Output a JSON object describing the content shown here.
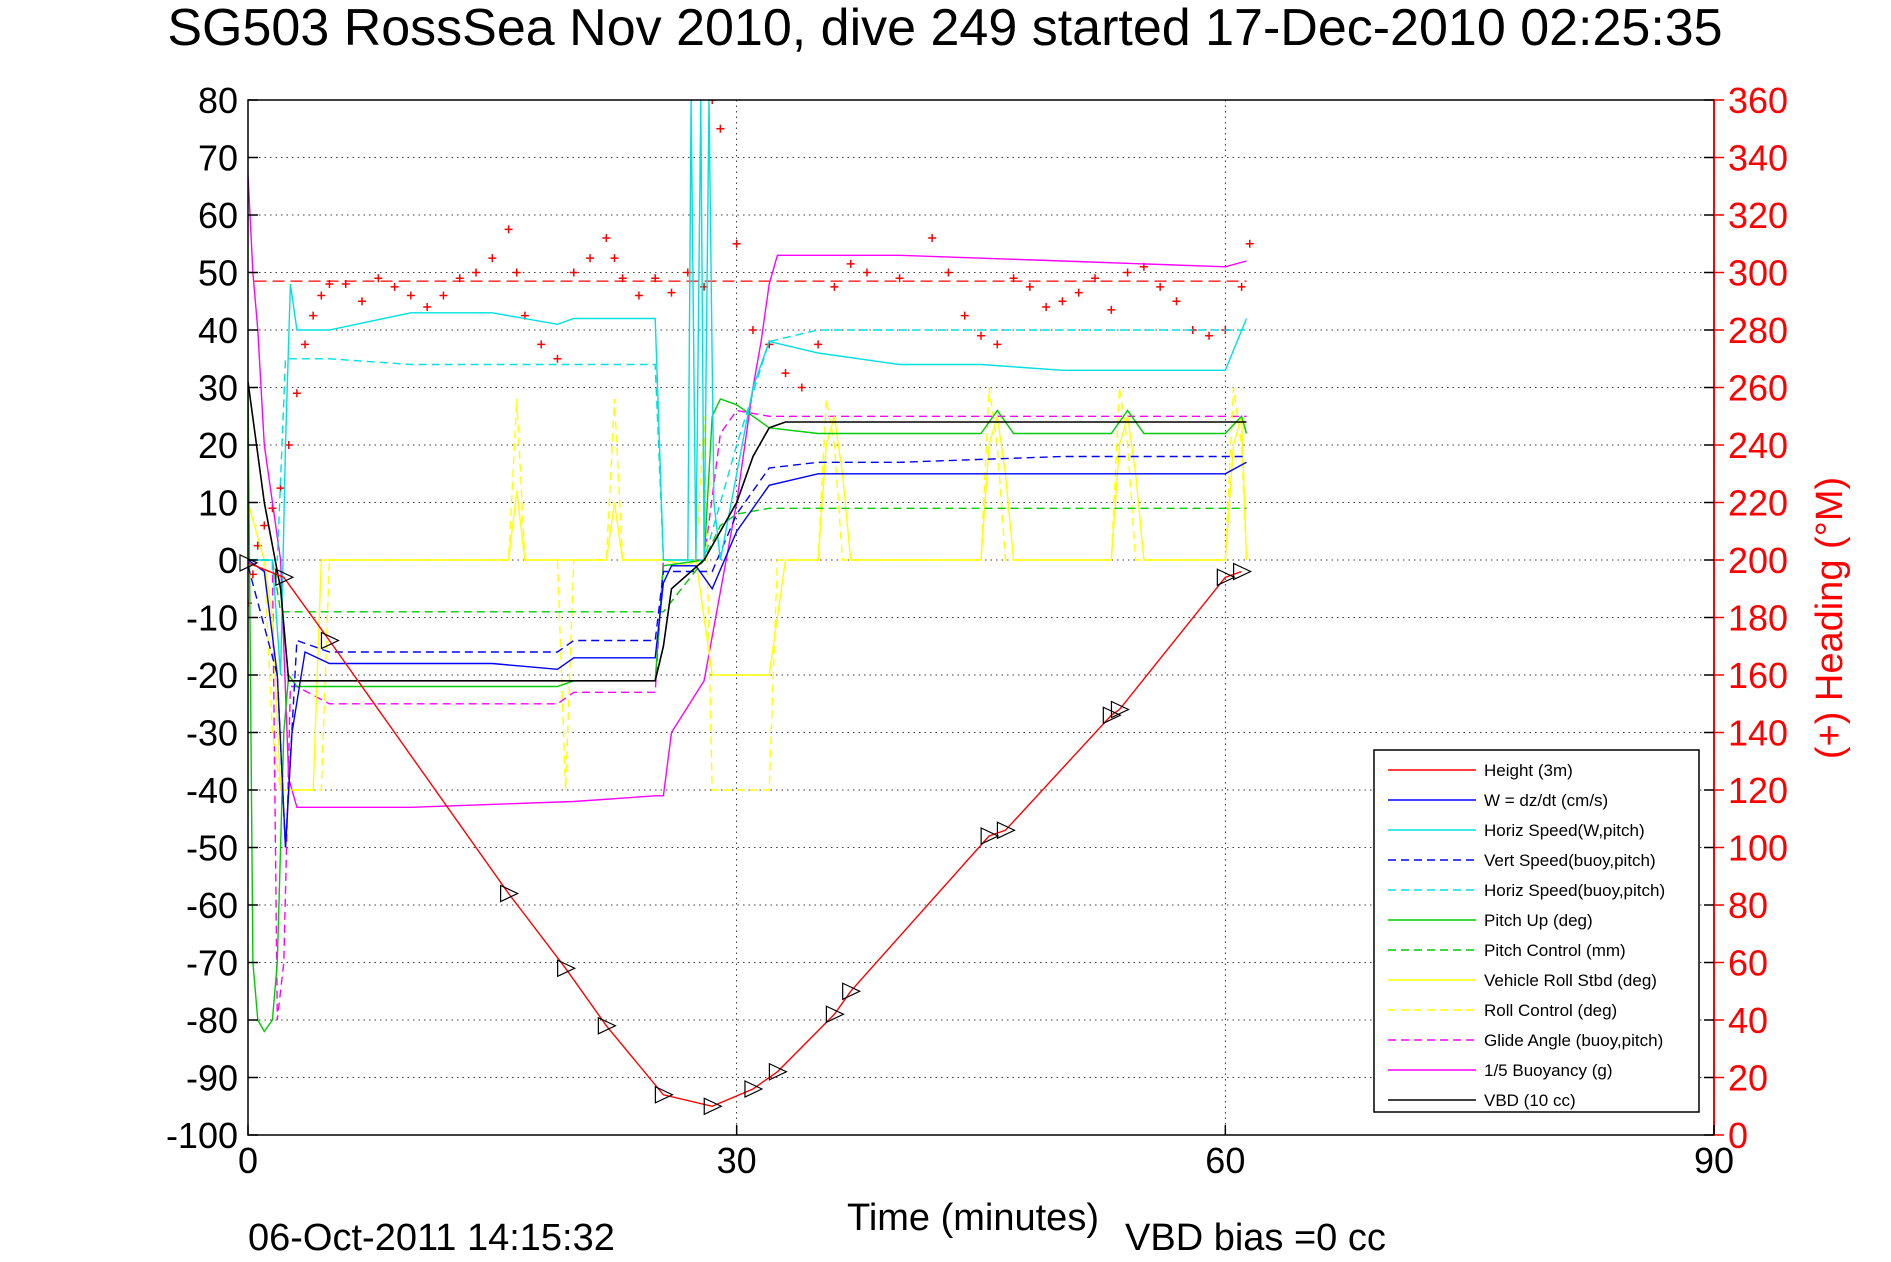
{
  "chart_data": {
    "type": "line",
    "title": "SG503 RossSea Nov 2010, dive 249 started 17-Dec-2010 02:25:35",
    "xlabel": "Time (minutes)",
    "ylabel_right": "(+) Heading (°M)",
    "xlim": [
      0,
      90
    ],
    "ylim": [
      -100,
      80
    ],
    "ylim_right": [
      0,
      360
    ],
    "x_ticks": [
      "0",
      "30",
      "60",
      "90"
    ],
    "y_ticks": [
      "80",
      "70",
      "60",
      "50",
      "40",
      "30",
      "20",
      "10",
      "0",
      "-10",
      "-20",
      "-30",
      "-40",
      "-50",
      "-60",
      "-70",
      "-80",
      "-90",
      "-100"
    ],
    "y_right_ticks": [
      "360",
      "340",
      "320",
      "300",
      "280",
      "260",
      "240",
      "220",
      "200",
      "180",
      "160",
      "140",
      "120",
      "100",
      "80",
      "60",
      "40",
      "20",
      "0"
    ],
    "grid": true,
    "legend_position": "bottom-right",
    "footer_left": "06-Oct-2011 14:15:32",
    "footer_right": "VBD bias =0 cc",
    "series": [
      {
        "name": "Height (3m)",
        "color": "#ff0000",
        "style": "solid",
        "x": [
          0,
          2.2,
          5,
          16,
          19.5,
          22,
          25.5,
          28.5,
          31,
          32.5,
          36,
          37,
          45.5,
          46.5,
          53,
          53.5,
          60,
          61
        ],
        "y": [
          -0.5,
          -3,
          -14,
          -58,
          -71,
          -81,
          -93,
          -95,
          -92,
          -89,
          -79,
          -75,
          -48,
          -47,
          -27,
          -26,
          -3,
          -2
        ]
      },
      {
        "name": "W = dz/dt (cm/s)",
        "color": "#0000ff",
        "style": "solid",
        "x": [
          0,
          1,
          1.8,
          2.3,
          2.7,
          3.5,
          5,
          10,
          15,
          19,
          20,
          25,
          25.5,
          26,
          27.5,
          28.5,
          30,
          32,
          35,
          40,
          45,
          50,
          55,
          60,
          61.3
        ],
        "y": [
          0,
          -2,
          -20,
          -50,
          -30,
          -16,
          -18,
          -18,
          -18,
          -19,
          -17,
          -17,
          -4,
          -1,
          -1,
          -5,
          5,
          13,
          15,
          15,
          15,
          15,
          15,
          15,
          17
        ]
      },
      {
        "name": "Horiz Speed(W,pitch)",
        "color": "#00e0e0",
        "style": "solid",
        "x": [
          0,
          1.5,
          2,
          2.3,
          2.6,
          3,
          5,
          10,
          15,
          19,
          20,
          25,
          25.5,
          26,
          27,
          27.2,
          27.5,
          27.8,
          28,
          28.3,
          28.6,
          29,
          31,
          32,
          35,
          40,
          45,
          50,
          55,
          60,
          61.3
        ],
        "y": [
          0,
          0,
          -20,
          20,
          48,
          40,
          40,
          43,
          43,
          41,
          42,
          42,
          0,
          0,
          0,
          80,
          0,
          80,
          0,
          80,
          10,
          0,
          30,
          38,
          36,
          34,
          34,
          33,
          33,
          33,
          42
        ]
      },
      {
        "name": "Vert Speed(buoy,pitch)",
        "color": "#0000ff",
        "style": "dashed",
        "x": [
          0,
          1.8,
          2.3,
          3,
          5,
          10,
          19,
          20,
          25,
          25.5,
          28.5,
          30,
          32,
          35,
          40,
          50,
          60,
          61.3
        ],
        "y": [
          -1,
          -20,
          -50,
          -14,
          -16,
          -16,
          -16,
          -14,
          -14,
          -2,
          -2,
          8,
          16,
          17,
          17,
          18,
          18,
          18
        ]
      },
      {
        "name": "Horiz Speed(buoy,pitch)",
        "color": "#00e0e0",
        "style": "dashed",
        "x": [
          0,
          1.8,
          2.3,
          3,
          5,
          10,
          20,
          25,
          25.5,
          28,
          30,
          32,
          35,
          40,
          50,
          60,
          61.3
        ],
        "y": [
          0,
          0,
          35,
          35,
          35,
          34,
          34,
          34,
          0,
          0,
          20,
          38,
          40,
          40,
          40,
          40,
          40
        ]
      },
      {
        "name": "Pitch Up (deg)",
        "color": "#00cc00",
        "style": "solid",
        "x": [
          0,
          0.3,
          0.6,
          1,
          1.5,
          1.8,
          2.2,
          2.5,
          3,
          5,
          10,
          19,
          20,
          25,
          25.5,
          28,
          28.5,
          29,
          30,
          31,
          32,
          35,
          40,
          45,
          46,
          47,
          53,
          54,
          55,
          60,
          61,
          61.3
        ],
        "y": [
          30,
          -70,
          -80,
          -82,
          -80,
          -70,
          -30,
          -20,
          -22,
          -22,
          -22,
          -22,
          -21,
          -21,
          -1,
          0,
          25,
          28,
          27,
          25,
          23,
          22,
          22,
          22,
          26,
          22,
          22,
          26,
          22,
          22,
          25,
          22
        ]
      },
      {
        "name": "Pitch Control (mm)",
        "color": "#00cc00",
        "style": "dashed",
        "x": [
          0,
          1.5,
          2,
          2.5,
          5,
          10,
          20,
          25,
          25.5,
          28,
          29,
          30,
          32,
          35,
          40,
          50,
          60,
          61.3
        ],
        "y": [
          0,
          0,
          -9,
          -9,
          -9,
          -9,
          -9,
          -9,
          -9,
          0,
          6,
          8,
          9,
          9,
          9,
          9,
          9,
          9
        ]
      },
      {
        "name": "Vehicle Roll Stbd (deg)",
        "color": "#ffff00",
        "style": "solid",
        "x": [
          0,
          0.5,
          1,
          1.5,
          2,
          2.5,
          3,
          4,
          4.5,
          5,
          10,
          15,
          16,
          16.5,
          17,
          18,
          19,
          20,
          21,
          22,
          22.5,
          23,
          25,
          25.5,
          27,
          27.5,
          28,
          28.5,
          29,
          30,
          31,
          32,
          33,
          35,
          35.5,
          36,
          36.5,
          37,
          40,
          45,
          45.5,
          46,
          46.5,
          47,
          53,
          53.5,
          54,
          54.5,
          55,
          60,
          60.5,
          61,
          61.3
        ],
        "y": [
          10,
          5,
          0,
          -10,
          -40,
          -40,
          -40,
          -40,
          0,
          0,
          0,
          0,
          0,
          12,
          0,
          0,
          0,
          0,
          0,
          0,
          10,
          0,
          0,
          0,
          -1,
          0,
          -10,
          -20,
          -20,
          -20,
          -20,
          -20,
          0,
          0,
          20,
          25,
          15,
          0,
          0,
          0,
          20,
          25,
          15,
          0,
          0,
          20,
          25,
          15,
          0,
          0,
          20,
          25,
          0
        ]
      },
      {
        "name": "Roll Control (deg)",
        "color": "#ffff00",
        "style": "dashed",
        "x": [
          0,
          1,
          1.5,
          2,
          2.5,
          3,
          4,
          4.5,
          5,
          10,
          15,
          16,
          16.5,
          17,
          18,
          19,
          19.5,
          20,
          21,
          22,
          22.5,
          23,
          25,
          26,
          27,
          27.5,
          28,
          28.5,
          29,
          30,
          31,
          32,
          32.5,
          33,
          35,
          35.5,
          36,
          36.5,
          37,
          40,
          45,
          45.5,
          46,
          46.5,
          47,
          53,
          53.5,
          54,
          54.5,
          55,
          60,
          60.5,
          61,
          61.3
        ],
        "y": [
          0,
          0,
          -30,
          -40,
          -40,
          -40,
          -40,
          -40,
          0,
          0,
          0,
          0,
          28,
          0,
          0,
          0,
          -40,
          0,
          0,
          0,
          28,
          0,
          0,
          0,
          0,
          0,
          25,
          -40,
          -40,
          -40,
          -40,
          -40,
          0,
          0,
          0,
          28,
          20,
          0,
          0,
          0,
          0,
          30,
          20,
          0,
          0,
          0,
          30,
          20,
          0,
          0,
          0,
          30,
          20,
          0
        ]
      },
      {
        "name": "Glide Angle (buoy,pitch)",
        "color": "#ff00ff",
        "style": "dashed",
        "x": [
          0,
          1.5,
          1.8,
          2.2,
          2.6,
          3,
          5,
          10,
          19,
          20,
          25,
          25.5,
          28,
          29,
          30,
          32,
          35,
          40,
          50,
          60,
          61.3
        ],
        "y": [
          0,
          0,
          -80,
          -70,
          -22,
          -22,
          -25,
          -25,
          -25,
          -23,
          -23,
          0,
          0,
          22,
          26,
          25,
          25,
          25,
          25,
          25,
          25
        ]
      },
      {
        "name": "1/5 Buoyancy (g)",
        "color": "#ff00ff",
        "style": "solid",
        "x": [
          0,
          0.3,
          0.6,
          1,
          2,
          2.5,
          3,
          10,
          20,
          25,
          25.5,
          26,
          28,
          30,
          31,
          31.5,
          32,
          32.5,
          40,
          50,
          60,
          61.3
        ],
        "y": [
          67,
          50,
          40,
          20,
          0,
          -38,
          -43,
          -43,
          -42,
          -41,
          -41,
          -30,
          -21,
          10,
          30,
          38,
          48,
          53,
          53,
          52,
          51,
          52
        ]
      },
      {
        "name": "VBD (10 cc)",
        "color": "#000000",
        "style": "solid",
        "x": [
          0,
          1,
          2,
          2.5,
          3,
          5,
          10,
          15,
          20,
          25,
          25.5,
          26,
          28,
          30,
          31,
          32,
          33,
          40,
          50,
          60,
          61.3
        ],
        "y": [
          31,
          10,
          -5,
          -21,
          -21,
          -21,
          -21,
          -21,
          -21,
          -21,
          -15,
          -5,
          0,
          10,
          18,
          23,
          24,
          24,
          24,
          24,
          24
        ]
      }
    ],
    "heading_series": {
      "name": "(+) Heading (°M)",
      "color": "#ff0000",
      "marker": "+",
      "x": [
        0,
        0.3,
        0.6,
        1,
        1.5,
        2,
        2.5,
        3,
        3.5,
        4,
        4.5,
        5,
        6,
        7,
        8,
        9,
        10,
        11,
        12,
        13,
        14,
        15,
        16,
        16.5,
        17,
        18,
        19,
        20,
        21,
        22,
        22.5,
        23,
        24,
        25,
        26,
        27,
        28,
        28.5,
        29,
        30,
        31,
        32,
        33,
        34,
        35,
        36,
        37,
        38,
        40,
        42,
        43,
        44,
        45,
        46,
        47,
        48,
        49,
        50,
        51,
        52,
        53,
        54,
        55,
        56,
        57,
        58,
        59,
        60,
        61,
        61.5
      ],
      "y": [
        185,
        195,
        205,
        212,
        218,
        225,
        240,
        258,
        275,
        285,
        292,
        296,
        296,
        290,
        298,
        295,
        292,
        288,
        292,
        298,
        300,
        305,
        315,
        300,
        285,
        275,
        270,
        300,
        305,
        312,
        305,
        298,
        292,
        298,
        293,
        300,
        295,
        360,
        350,
        310,
        280,
        275,
        265,
        260,
        275,
        295,
        303,
        300,
        298,
        312,
        300,
        285,
        278,
        275,
        298,
        295,
        288,
        290,
        293,
        298,
        287,
        300,
        302,
        295,
        290,
        280,
        278,
        280,
        295,
        310
      ]
    },
    "heading_mean": 297
  }
}
